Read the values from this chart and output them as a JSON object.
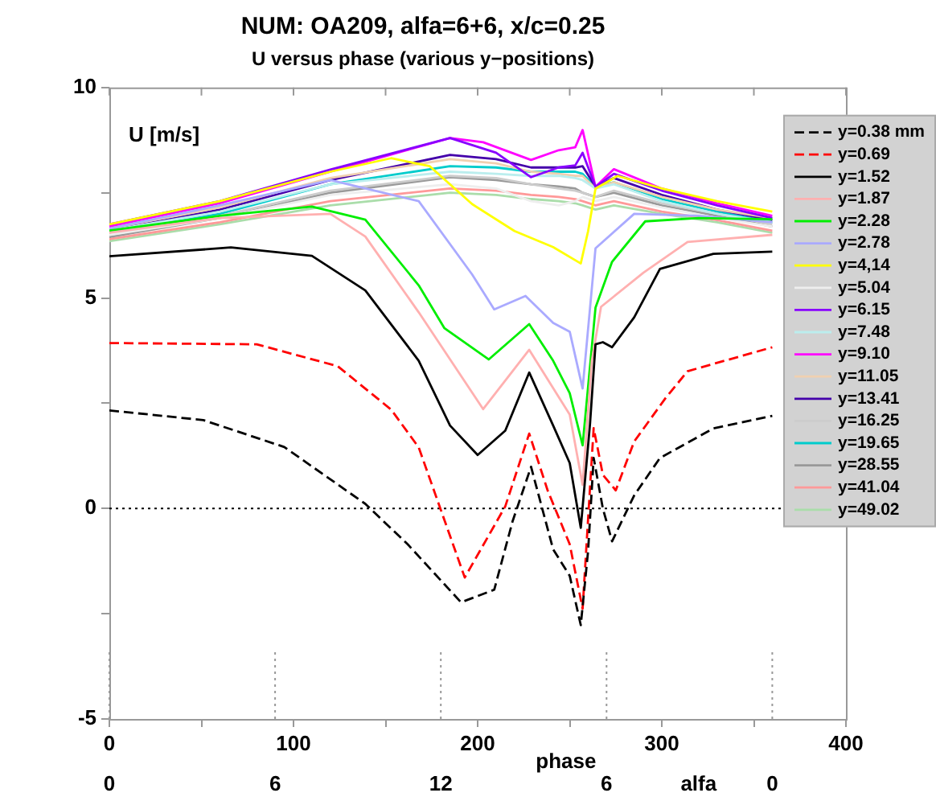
{
  "chart_data": {
    "type": "line",
    "title": "NUM: OA209, alfa=6+6, x/c=0.25",
    "subtitle": "U versus phase (various y−positions)",
    "xlabel": "phase",
    "ylabel": "U [m/s]",
    "annotations": [
      "alfa",
      {
        "text": "0",
        "x": 0,
        "y": -5
      },
      {
        "text": "6",
        "x": 90,
        "y": -5
      },
      {
        "text": "12",
        "x": 180,
        "y": -5
      },
      {
        "text": "6",
        "x": 270,
        "y": -5
      },
      {
        "text": "0",
        "x": 360,
        "y": -5
      }
    ],
    "xlim": [
      0,
      400
    ],
    "xticks": [
      0,
      {
        "value": 50,
        "label": null
      },
      100,
      {
        "value": 150,
        "label": null
      },
      200,
      {
        "value": 250,
        "label": null
      },
      300,
      {
        "value": 350,
        "label": null
      },
      400
    ],
    "ylim": [
      -5,
      10
    ],
    "yticks": [
      -5,
      {
        "value": -2.5,
        "label": null
      },
      0,
      {
        "value": 2.5,
        "label": null
      },
      5,
      {
        "value": 7.5,
        "label": null
      },
      10
    ],
    "grid": false,
    "legend": "top right",
    "marker": "none",
    "ref_lines": [
      {
        "axis": "y",
        "value": 0,
        "line_style": "dotted",
        "color": "#000000"
      },
      {
        "axis": "x",
        "value": 0,
        "line_style": "dotted",
        "color": "#999999"
      },
      {
        "axis": "x",
        "value": 90,
        "line_style": "dotted",
        "color": "#999999"
      },
      {
        "axis": "x",
        "value": 180,
        "line_style": "dotted",
        "color": "#999999"
      },
      {
        "axis": "x",
        "value": 270,
        "line_style": "dotted",
        "color": "#999999"
      },
      {
        "axis": "x",
        "value": 360,
        "line_style": "dotted",
        "color": "#999999"
      }
    ],
    "series": [
      {
        "name": "y=0.38 mm",
        "color": "#000000",
        "line_style": "dashed",
        "x": [
          0,
          51,
          95,
          139,
          162,
          191,
          209,
          219,
          229,
          241,
          250,
          256,
          260,
          263,
          268,
          273,
          285,
          299,
          328,
          360
        ],
        "values": [
          2.33,
          2.1,
          1.46,
          0.11,
          -0.85,
          -2.23,
          -1.93,
          -0.3,
          0.99,
          -0.97,
          -1.6,
          -2.77,
          -1.0,
          1.2,
          0.0,
          -0.78,
          0.31,
          1.2,
          1.9,
          2.2
        ]
      },
      {
        "name": "y=0.69",
        "color": "#ff0000",
        "line_style": "dashed",
        "x": [
          0,
          80,
          124,
          153,
          168,
          193,
          215,
          228,
          238,
          250,
          257,
          263,
          268,
          275,
          285,
          302,
          314,
          360
        ],
        "values": [
          3.93,
          3.9,
          3.38,
          2.35,
          1.45,
          -1.64,
          0.05,
          1.78,
          0.43,
          -0.85,
          -2.38,
          1.91,
          0.8,
          0.43,
          1.59,
          2.62,
          3.26,
          3.83
        ]
      },
      {
        "name": "y=1.52",
        "color": "#000000",
        "x": [
          0,
          66,
          110,
          139,
          168,
          185,
          200,
          215,
          228,
          241,
          250,
          256,
          261,
          264,
          268,
          273,
          285,
          299,
          328,
          360
        ],
        "values": [
          5.99,
          6.2,
          6.0,
          5.18,
          3.51,
          1.97,
          1.27,
          1.85,
          3.23,
          1.97,
          1.08,
          -0.46,
          2.0,
          3.9,
          3.95,
          3.83,
          4.54,
          5.69,
          6.05,
          6.1
        ]
      },
      {
        "name": "y=1.87",
        "color": "#ffb0b0",
        "x": [
          0,
          60,
          120,
          139,
          168,
          203,
          228,
          250,
          257,
          262,
          267,
          290,
          314,
          360
        ],
        "values": [
          6.55,
          6.9,
          7.0,
          6.46,
          4.66,
          2.36,
          3.77,
          2.23,
          0.56,
          3.5,
          4.79,
          5.6,
          6.33,
          6.5
        ]
      },
      {
        "name": "y=2.28",
        "color": "#00ee00",
        "x": [
          0,
          60,
          110,
          139,
          168,
          182,
          206,
          228,
          241,
          250,
          257,
          264,
          273,
          291,
          320,
          360
        ],
        "values": [
          6.6,
          6.95,
          7.17,
          6.86,
          5.3,
          4.28,
          3.54,
          4.38,
          3.51,
          2.74,
          1.5,
          4.77,
          5.86,
          6.82,
          6.9,
          6.87
        ]
      },
      {
        "name": "y=2.78",
        "color": "#aaaaff",
        "x": [
          0,
          60,
          120,
          168,
          197,
          209,
          226,
          241,
          250,
          257,
          264,
          285,
          320,
          360
        ],
        "values": [
          6.65,
          7.2,
          7.8,
          7.3,
          5.56,
          4.73,
          5.05,
          4.41,
          4.2,
          2.85,
          6.18,
          7.0,
          6.95,
          6.8
        ]
      },
      {
        "name": "y=4,14",
        "color": "#ffff00",
        "x": [
          0,
          60,
          120,
          153,
          174,
          197,
          220,
          241,
          256,
          260,
          264,
          276,
          300,
          330,
          360
        ],
        "values": [
          6.75,
          7.3,
          8.0,
          8.32,
          8.13,
          7.23,
          6.59,
          6.21,
          5.82,
          6.59,
          7.6,
          7.9,
          7.6,
          7.3,
          7.05
        ]
      },
      {
        "name": "y=5.04",
        "color": "#eeeeee",
        "x": [
          0,
          60,
          120,
          185,
          210,
          229,
          244,
          253,
          257,
          264,
          274,
          300,
          330,
          360
        ],
        "values": [
          6.5,
          6.9,
          7.45,
          7.7,
          7.6,
          7.3,
          7.2,
          7.3,
          7.4,
          7.3,
          7.4,
          7.15,
          6.9,
          6.7
        ]
      },
      {
        "name": "y=6.15",
        "color": "#8800ff",
        "x": [
          0,
          60,
          120,
          185,
          210,
          229,
          244,
          253,
          257,
          264,
          274,
          300,
          330,
          360
        ],
        "values": [
          6.75,
          7.3,
          8.05,
          8.8,
          8.45,
          7.87,
          8.1,
          8.15,
          8.45,
          7.64,
          7.95,
          7.55,
          7.2,
          6.9
        ]
      },
      {
        "name": "y=7.48",
        "color": "#bbeeee",
        "x": [
          0,
          60,
          120,
          185,
          210,
          229,
          244,
          253,
          257,
          264,
          274,
          300,
          330,
          360
        ],
        "values": [
          6.6,
          7.05,
          7.7,
          8.0,
          7.95,
          7.9,
          7.9,
          7.85,
          7.8,
          7.6,
          7.7,
          7.3,
          7.0,
          6.8
        ]
      },
      {
        "name": "y=9.10",
        "color": "#ff00ff",
        "x": [
          0,
          60,
          120,
          185,
          203,
          229,
          244,
          253,
          257,
          264,
          274,
          300,
          330,
          360
        ],
        "values": [
          6.7,
          7.25,
          8.0,
          8.8,
          8.7,
          8.28,
          8.51,
          8.58,
          8.99,
          7.64,
          8.06,
          7.6,
          7.25,
          6.95
        ]
      },
      {
        "name": "y=11.05",
        "color": "#f0d0b0",
        "x": [
          0,
          60,
          120,
          185,
          210,
          229,
          244,
          253,
          257,
          264,
          274,
          300,
          330,
          360
        ],
        "values": [
          6.65,
          7.15,
          7.85,
          8.3,
          8.2,
          8.0,
          7.95,
          7.9,
          7.9,
          7.6,
          7.75,
          7.4,
          7.1,
          6.9
        ]
      },
      {
        "name": "y=13.41",
        "color": "#4400aa",
        "x": [
          0,
          60,
          120,
          185,
          210,
          229,
          244,
          253,
          257,
          264,
          274,
          300,
          330,
          360
        ],
        "values": [
          6.6,
          7.1,
          7.8,
          8.4,
          8.3,
          8.1,
          8.1,
          8.1,
          8.13,
          7.64,
          7.85,
          7.45,
          7.1,
          6.85
        ]
      },
      {
        "name": "y=16.25",
        "color": "#cccccc",
        "x": [
          0,
          60,
          120,
          185,
          210,
          229,
          244,
          253,
          257,
          264,
          274,
          300,
          330,
          360
        ],
        "values": [
          6.5,
          6.95,
          7.55,
          7.9,
          7.85,
          7.7,
          7.6,
          7.55,
          7.5,
          7.4,
          7.55,
          7.25,
          7.0,
          6.75
        ]
      },
      {
        "name": "y=19.65",
        "color": "#00cccc",
        "x": [
          0,
          60,
          120,
          185,
          210,
          229,
          244,
          253,
          257,
          264,
          274,
          300,
          330,
          360
        ],
        "values": [
          6.55,
          7.0,
          7.7,
          8.13,
          8.1,
          8.0,
          8.0,
          8.0,
          7.95,
          7.64,
          7.75,
          7.35,
          7.05,
          6.8
        ]
      },
      {
        "name": "y=28.55",
        "color": "#999999",
        "x": [
          0,
          60,
          120,
          185,
          210,
          229,
          244,
          253,
          257,
          264,
          274,
          300,
          330,
          360
        ],
        "values": [
          6.45,
          6.9,
          7.5,
          7.87,
          7.8,
          7.7,
          7.65,
          7.6,
          7.5,
          7.4,
          7.5,
          7.2,
          6.95,
          6.7
        ]
      },
      {
        "name": "y=41.04",
        "color": "#ff9999",
        "x": [
          0,
          60,
          120,
          185,
          210,
          229,
          244,
          253,
          257,
          264,
          274,
          300,
          330,
          360
        ],
        "values": [
          6.4,
          6.8,
          7.3,
          7.6,
          7.55,
          7.45,
          7.4,
          7.35,
          7.3,
          7.2,
          7.3,
          7.05,
          6.85,
          6.6
        ]
      },
      {
        "name": "y=49.02",
        "color": "#aaddaa",
        "x": [
          0,
          60,
          120,
          185,
          210,
          229,
          244,
          253,
          257,
          264,
          274,
          300,
          330,
          360
        ],
        "values": [
          6.35,
          6.75,
          7.2,
          7.5,
          7.45,
          7.35,
          7.3,
          7.25,
          7.2,
          7.1,
          7.2,
          7.0,
          6.8,
          6.55
        ]
      }
    ]
  }
}
